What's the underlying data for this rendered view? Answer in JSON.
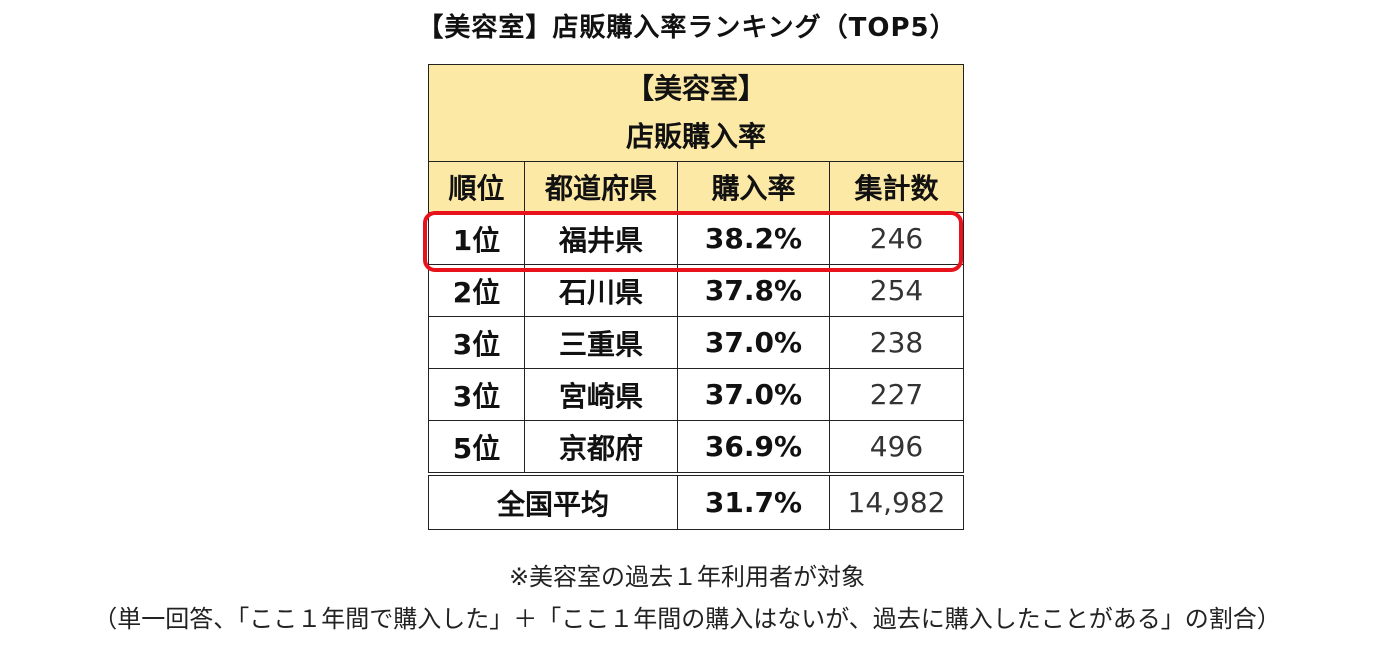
{
  "title": "【美容室】店販購入率ランキング（TOP5）",
  "table": {
    "header_line1": "【美容室】",
    "header_line2": "店販購入率",
    "columns": [
      "順位",
      "都道府県",
      "購入率",
      "集計数"
    ],
    "rows": [
      {
        "rank": "1位",
        "prefecture": "福井県",
        "rate": "38.2%",
        "count": "246"
      },
      {
        "rank": "2位",
        "prefecture": "石川県",
        "rate": "37.8%",
        "count": "254"
      },
      {
        "rank": "3位",
        "prefecture": "三重県",
        "rate": "37.0%",
        "count": "238"
      },
      {
        "rank": "3位",
        "prefecture": "宮崎県",
        "rate": "37.0%",
        "count": "227"
      },
      {
        "rank": "5位",
        "prefecture": "京都府",
        "rate": "36.9%",
        "count": "496"
      }
    ],
    "average": {
      "label": "全国平均",
      "rate": "31.7%",
      "count": "14,982"
    }
  },
  "notes": {
    "line1": "※美容室の過去１年利用者が対象",
    "line2": "（単一回答、「ここ１年間で購入した」＋「ここ１年間の購入はないが、過去に購入したことがある」の割合）"
  },
  "colors": {
    "header_bg": "#fde9a6",
    "highlight_border": "#e8121c"
  }
}
